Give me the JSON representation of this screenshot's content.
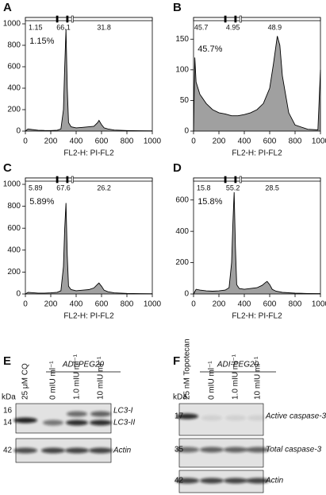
{
  "chart_data": [
    {
      "type": "area",
      "panel": "A",
      "xlabel": "FL2-H: PI-FL2",
      "xlim": [
        0,
        1000
      ],
      "xticks": [
        0,
        200,
        400,
        600,
        800,
        1000
      ],
      "ylim": [
        0,
        1000
      ],
      "yticks": [
        0,
        200,
        400,
        600,
        800,
        1000
      ],
      "gates": [
        1.15,
        66.1,
        31.8
      ],
      "annotation": "1.15%",
      "color": "#a0a0a0",
      "x": [
        0,
        20,
        50,
        100,
        150,
        200,
        250,
        280,
        300,
        310,
        320,
        330,
        340,
        360,
        400,
        450,
        500,
        540,
        570,
        580,
        600,
        620,
        650,
        700,
        800,
        900,
        1000
      ],
      "values": [
        0,
        20,
        15,
        8,
        6,
        5,
        8,
        20,
        200,
        600,
        950,
        400,
        80,
        40,
        30,
        35,
        40,
        45,
        80,
        100,
        60,
        30,
        20,
        10,
        5,
        3,
        2
      ]
    },
    {
      "type": "area",
      "panel": "B",
      "xlabel": "FL2-H: PI-FL2",
      "xlim": [
        0,
        1000
      ],
      "xticks": [
        0,
        200,
        400,
        600,
        800,
        1000
      ],
      "ylim": [
        0,
        175
      ],
      "yticks": [
        0,
        50,
        100,
        150
      ],
      "gates": [
        45.7,
        4.95,
        48.9
      ],
      "annotation": "45.7%",
      "color": "#a0a0a0",
      "x": [
        0,
        10,
        20,
        50,
        100,
        150,
        200,
        250,
        300,
        350,
        400,
        450,
        500,
        550,
        600,
        630,
        660,
        680,
        700,
        750,
        800,
        900,
        980,
        1000
      ],
      "values": [
        0,
        120,
        80,
        60,
        45,
        35,
        30,
        28,
        25,
        25,
        27,
        30,
        35,
        45,
        70,
        110,
        155,
        140,
        90,
        30,
        10,
        3,
        2,
        100
      ]
    },
    {
      "type": "area",
      "panel": "C",
      "xlabel": "FL2-H: PI-FL2",
      "xlim": [
        0,
        1000
      ],
      "xticks": [
        0,
        200,
        400,
        600,
        800,
        1000
      ],
      "ylim": [
        0,
        1000
      ],
      "yticks": [
        0,
        200,
        400,
        600,
        800,
        1000
      ],
      "gates": [
        5.89,
        67.6,
        26.2
      ],
      "annotation": "5.89%",
      "color": "#a0a0a0",
      "x": [
        0,
        20,
        50,
        100,
        150,
        200,
        250,
        280,
        300,
        310,
        320,
        330,
        340,
        360,
        400,
        450,
        500,
        540,
        570,
        580,
        600,
        620,
        650,
        700,
        800,
        900,
        1000
      ],
      "values": [
        0,
        15,
        12,
        8,
        8,
        10,
        15,
        30,
        250,
        600,
        830,
        350,
        70,
        40,
        30,
        35,
        40,
        55,
        90,
        100,
        70,
        35,
        20,
        10,
        5,
        3,
        2
      ]
    },
    {
      "type": "area",
      "panel": "D",
      "xlabel": "FL2-H: PI-FL2",
      "xlim": [
        0,
        1000
      ],
      "xticks": [
        0,
        200,
        400,
        600,
        800,
        1000
      ],
      "ylim": [
        0,
        700
      ],
      "yticks": [
        0,
        200,
        400,
        600
      ],
      "gates": [
        15.8,
        55.2,
        28.5
      ],
      "annotation": "15.8%",
      "color": "#a0a0a0",
      "x": [
        0,
        20,
        50,
        100,
        150,
        200,
        250,
        280,
        300,
        310,
        320,
        330,
        340,
        360,
        400,
        450,
        500,
        540,
        570,
        580,
        600,
        620,
        650,
        700,
        800,
        900,
        1000
      ],
      "values": [
        0,
        30,
        25,
        20,
        18,
        20,
        25,
        40,
        200,
        450,
        650,
        300,
        60,
        35,
        30,
        35,
        40,
        55,
        75,
        80,
        60,
        30,
        18,
        10,
        5,
        3,
        2
      ]
    }
  ],
  "blots": [
    {
      "label": "E",
      "header": "ADI-PEG20",
      "kda": "kDa",
      "lanes": [
        "25 μM CQ",
        "0 mIU ml⁻¹",
        "1.0 mIU ml⁻¹",
        "10 mIU ml⁻¹"
      ],
      "rows": [
        {
          "markers": [
            16,
            14
          ],
          "labels": [
            "LC3-I",
            "LC3-II"
          ]
        },
        {
          "markers": [
            42
          ],
          "labels": [
            "Actin"
          ]
        }
      ]
    },
    {
      "label": "F",
      "header": "ADI-PEG20",
      "kda": "kDa",
      "lanes": [
        "25 nM Topotecan",
        "0 mIU ml⁻¹",
        "1.0 mIU ml⁻¹",
        "10 mIU ml⁻¹"
      ],
      "rows": [
        {
          "markers": [
            17
          ],
          "labels": [
            "Active caspase-3"
          ]
        },
        {
          "markers": [
            35
          ],
          "labels": [
            "Total caspase-3"
          ]
        },
        {
          "markers": [
            42
          ],
          "labels": [
            "Actin"
          ]
        }
      ]
    }
  ]
}
